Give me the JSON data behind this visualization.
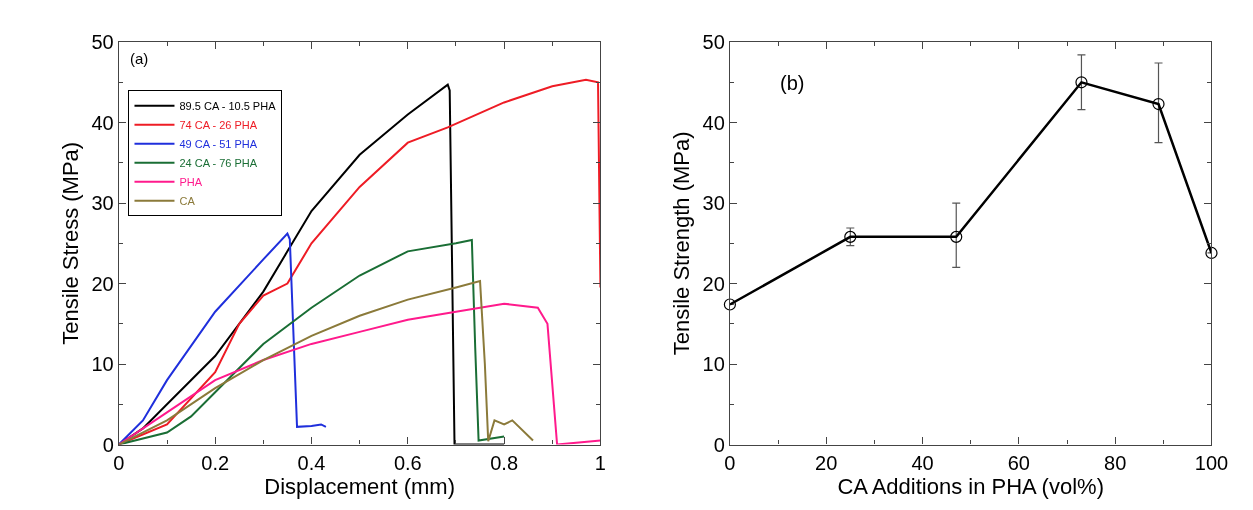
{
  "chart_data": [
    {
      "type": "line",
      "xlabel": "Displacement (mm)",
      "ylabel": "Tensile Stress (MPa)",
      "annotations": [
        "(a)"
      ],
      "xlim": [
        0,
        1
      ],
      "ylim": [
        0,
        50
      ],
      "xticks": [
        0,
        0.2,
        0.4,
        0.6,
        0.8,
        1
      ],
      "yticks": [
        0,
        10,
        20,
        30,
        40,
        50
      ],
      "legend": "top left",
      "marker": "none",
      "line_style": "solid",
      "series": [
        {
          "name": "89.5 CA - 10.5 PHA",
          "color": "#000000",
          "x": [
            0,
            0.05,
            0.1,
            0.2,
            0.3,
            0.35,
            0.4,
            0.5,
            0.6,
            0.683,
            0.687,
            0.697,
            0.72,
            0.8
          ],
          "values": [
            0,
            2,
            5,
            11,
            19,
            24,
            29,
            36,
            41,
            44.7,
            44,
            0,
            0,
            0
          ]
        },
        {
          "name": "74 CA - 26 PHA",
          "color": "#ee1c25",
          "x": [
            0,
            0.1,
            0.2,
            0.25,
            0.3,
            0.35,
            0.4,
            0.5,
            0.6,
            0.683,
            0.8,
            0.9,
            0.97,
            0.995,
            1
          ],
          "values": [
            0,
            2.5,
            9,
            15,
            18.5,
            20,
            25,
            32,
            37.5,
            39.4,
            42.5,
            44.5,
            45.3,
            45,
            19.5
          ]
        },
        {
          "name": "49 CA - 51 PHA",
          "color": "#1f2fdc",
          "x": [
            0,
            0.05,
            0.1,
            0.2,
            0.3,
            0.35,
            0.355,
            0.37,
            0.4,
            0.42,
            0.43
          ],
          "values": [
            0,
            3,
            8,
            16.5,
            23,
            26.2,
            25.5,
            2.2,
            2.3,
            2.5,
            2.2
          ]
        },
        {
          "name": "24 CA - 76 PHA",
          "color": "#1a6e35",
          "x": [
            0,
            0.1,
            0.15,
            0.2,
            0.3,
            0.4,
            0.5,
            0.6,
            0.7,
            0.733,
            0.74,
            0.747,
            0.8
          ],
          "values": [
            0,
            1.5,
            3.5,
            6.5,
            12.5,
            17,
            21,
            24,
            25,
            25.4,
            12,
            0.5,
            1
          ]
        },
        {
          "name": "PHA",
          "color": "#ff1a8c",
          "x": [
            0,
            0.1,
            0.2,
            0.3,
            0.4,
            0.5,
            0.6,
            0.7,
            0.8,
            0.87,
            0.89,
            0.91,
            1
          ],
          "values": [
            0,
            4,
            8,
            10.5,
            12.5,
            14,
            15.5,
            16.5,
            17.5,
            17,
            15,
            0,
            0.5
          ]
        },
        {
          "name": "CA",
          "color": "#8b7a3a",
          "x": [
            0,
            0.1,
            0.2,
            0.3,
            0.4,
            0.5,
            0.6,
            0.7,
            0.75,
            0.76,
            0.767,
            0.78,
            0.8,
            0.817,
            0.86
          ],
          "values": [
            0,
            3,
            7,
            10.5,
            13.5,
            16,
            18,
            19.5,
            20.3,
            10,
            0.4,
            3,
            2.5,
            3,
            0.5
          ]
        }
      ]
    },
    {
      "type": "line",
      "xlabel": "CA Additions in PHA (vol%)",
      "ylabel": "Tensile Strength (MPa)",
      "annotations": [
        "(b)"
      ],
      "xlim": [
        0,
        100
      ],
      "ylim": [
        0,
        50
      ],
      "xticks": [
        0,
        20,
        40,
        60,
        80,
        100
      ],
      "yticks": [
        0,
        10,
        20,
        30,
        40,
        50
      ],
      "legend": false,
      "marker": "circle",
      "line_style": "solid",
      "series": [
        {
          "color": "#000000",
          "x": [
            0,
            25,
            47,
            73,
            89,
            100
          ],
          "values": [
            17.4,
            25.8,
            25.8,
            45,
            42.3,
            23.8
          ],
          "errors": [
            null,
            [
              24.7,
              26.9
            ],
            [
              22,
              30
            ],
            [
              41.6,
              48.4
            ],
            [
              37.5,
              47.4
            ],
            null
          ]
        }
      ]
    }
  ]
}
